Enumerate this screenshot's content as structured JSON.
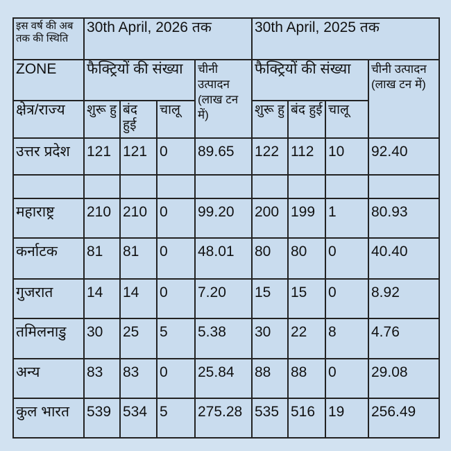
{
  "header": {
    "status_label": "इस वर्ष की अब तक की स्थिति",
    "period_current": "30th April, 2026 तक",
    "period_previous": "30th April, 2025 तक",
    "zone_label": "ZONE",
    "region_label": "क्षेत्र/राज्य",
    "factories_label": "फैक्ट्रियों की संख्या",
    "production_label_current": "चीनी उत्पादन (लाख टन में)",
    "production_label_previous": "चीनी उत्पादन (लाख टन में)",
    "started_label": "शुरू हु",
    "closed_label": "बंद हुई",
    "running_label": "चालू"
  },
  "rows": [
    {
      "region": "उत्तर प्रदेश",
      "c_started": "121",
      "c_closed": "121",
      "c_running": "0",
      "c_prod": "89.65",
      "p_started": "122",
      "p_closed": "112",
      "p_running": "10",
      "p_prod": "92.40"
    },
    {
      "region": "महाराष्ट्र",
      "c_started": "210",
      "c_closed": "210",
      "c_running": "0",
      "c_prod": "99.20",
      "p_started": "200",
      "p_closed": "199",
      "p_running": "1",
      "p_prod": "80.93"
    },
    {
      "region": "कर्नाटक",
      "c_started": "81",
      "c_closed": "81",
      "c_running": "0",
      "c_prod": "48.01",
      "p_started": "80",
      "p_closed": "80",
      "p_running": "0",
      "p_prod": "40.40"
    },
    {
      "region": "गुजरात",
      "c_started": "14",
      "c_closed": "14",
      "c_running": "0",
      "c_prod": "7.20",
      "p_started": "15",
      "p_closed": "15",
      "p_running": "0",
      "p_prod": "8.92"
    },
    {
      "region": "तमिलनाडु",
      "c_started": "30",
      "c_closed": "25",
      "c_running": "5",
      "c_prod": "5.38",
      "p_started": "30",
      "p_closed": "22",
      "p_running": "8",
      "p_prod": "4.76"
    },
    {
      "region": "अन्य",
      "c_started": "83",
      "c_closed": "83",
      "c_running": "0",
      "c_prod": "25.84",
      "p_started": "88",
      "p_closed": "88",
      "p_running": "0",
      "p_prod": "29.08"
    },
    {
      "region": "कुल भारत",
      "c_started": "539",
      "c_closed": "534",
      "c_running": "5",
      "c_prod": "275.28",
      "p_started": "535",
      "p_closed": "516",
      "p_running": "19",
      "p_prod": "256.49"
    }
  ]
}
